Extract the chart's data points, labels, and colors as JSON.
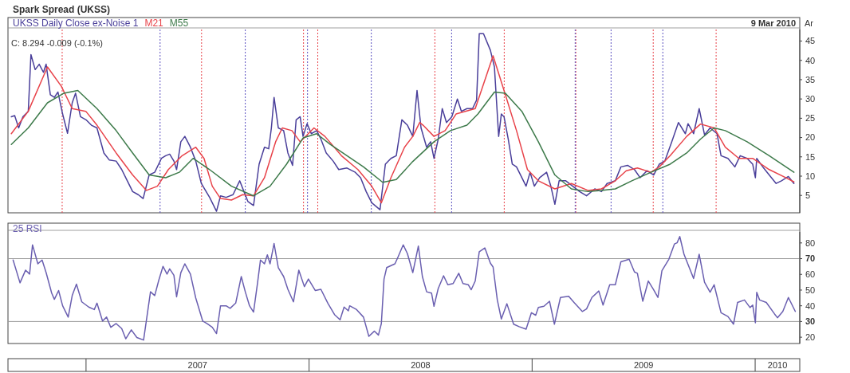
{
  "chart_data": [
    {
      "type": "line",
      "title": "Spark Spread (UKSS)",
      "legend": "top left",
      "tick_labels": "y",
      "grid": false,
      "line_style": "solid",
      "marker": "none",
      "xlim": [
        2006.65,
        2010.2
      ],
      "ylim": [
        0.5,
        48
      ],
      "yticks": [
        5,
        10,
        15,
        20,
        25,
        30,
        35,
        40,
        45
      ],
      "annotations": [
        "9 Mar 2010",
        "Ar",
        "C: 8.294  -0.009 (-0.1%)"
      ],
      "ref_lines": [
        {
          "axis": "x",
          "value": 2006.893,
          "color": "#e8434a",
          "line_style": "dotted"
        },
        {
          "axis": "x",
          "value": 2007.518,
          "color": "#e8434a",
          "line_style": "dotted"
        },
        {
          "axis": "x",
          "value": 2007.975,
          "color": "#e8434a",
          "line_style": "dotted"
        },
        {
          "axis": "x",
          "value": 2008.039,
          "color": "#e8434a",
          "line_style": "dotted"
        },
        {
          "axis": "x",
          "value": 2008.564,
          "color": "#e8434a",
          "line_style": "dotted"
        },
        {
          "axis": "x",
          "value": 2008.875,
          "color": "#e8434a",
          "line_style": "dotted"
        },
        {
          "axis": "x",
          "value": 2009.196,
          "color": "#e8434a",
          "line_style": "dotted"
        },
        {
          "axis": "x",
          "value": 2009.543,
          "color": "#e8434a",
          "line_style": "dotted"
        },
        {
          "axis": "x",
          "value": 2009.825,
          "color": "#e8434a",
          "line_style": "dotted"
        },
        {
          "axis": "x",
          "value": 2007.332,
          "color": "#5a50c0",
          "line_style": "dotted"
        },
        {
          "axis": "x",
          "value": 2007.714,
          "color": "#5a50c0",
          "line_style": "dotted"
        },
        {
          "axis": "x",
          "value": 2007.993,
          "color": "#5a50c0",
          "line_style": "dotted"
        },
        {
          "axis": "x",
          "value": 2008.279,
          "color": "#5a50c0",
          "line_style": "dotted"
        },
        {
          "axis": "x",
          "value": 2008.639,
          "color": "#5a50c0",
          "line_style": "dotted"
        },
        {
          "axis": "x",
          "value": 2009.193,
          "color": "#5a50c0",
          "line_style": "dotted"
        },
        {
          "axis": "x",
          "value": 2009.354,
          "color": "#5a50c0",
          "line_style": "dotted"
        },
        {
          "axis": "x",
          "value": 2009.586,
          "color": "#5a50c0",
          "line_style": "dotted"
        }
      ],
      "series": [
        {
          "name": "UKSS Daily Close ex-Noise 1",
          "color": "#4a3f9a",
          "x": [
            2006.665,
            2006.68,
            2006.698,
            2006.717,
            2006.741,
            2006.753,
            2006.772,
            2006.79,
            2006.809,
            2006.821,
            2006.84,
            2006.858,
            2006.874,
            2006.895,
            2006.917,
            2006.938,
            2006.953,
            2006.975,
            2007.0,
            2007.024,
            2007.049,
            2007.08,
            2007.104,
            2007.135,
            2007.16,
            2007.185,
            2007.209,
            2007.234,
            2007.256,
            2007.283,
            2007.308,
            2007.338,
            2007.357,
            2007.375,
            2007.394,
            2007.406,
            2007.425,
            2007.443,
            2007.468,
            2007.492,
            2007.517,
            2007.554,
            2007.585,
            2007.603,
            2007.628,
            2007.659,
            2007.689,
            2007.708,
            2007.726,
            2007.751,
            2007.776,
            2007.8,
            2007.819,
            2007.831,
            2007.843,
            2007.862,
            2007.886,
            2007.905,
            2007.926,
            2007.942,
            2007.96,
            2007.973,
            2007.991,
            2008.01,
            2008.034,
            2008.053,
            2008.077,
            2008.108,
            2008.133,
            2008.17,
            2008.207,
            2008.231,
            2008.256,
            2008.281,
            2008.318,
            2008.342,
            2008.367,
            2008.391,
            2008.416,
            2008.441,
            2008.465,
            2008.484,
            2008.502,
            2008.527,
            2008.545,
            2008.56,
            2008.579,
            2008.597,
            2008.616,
            2008.64,
            2008.665,
            2008.683,
            2008.708,
            2008.733,
            2008.751,
            2008.763,
            2008.782,
            2008.813,
            2008.831,
            2008.85,
            2008.862,
            2008.874,
            2008.893,
            2008.911,
            2008.93,
            2008.954,
            2008.973,
            2008.991,
            2009.01,
            2009.034,
            2009.065,
            2009.084,
            2009.102,
            2009.121,
            2009.151,
            2009.182,
            2009.213,
            2009.244,
            2009.281,
            2009.311,
            2009.336,
            2009.373,
            2009.398,
            2009.428,
            2009.459,
            2009.484,
            2009.515,
            2009.545,
            2009.57,
            2009.595,
            2009.626,
            2009.656,
            2009.687,
            2009.699,
            2009.724,
            2009.749,
            2009.773,
            2009.798,
            2009.829,
            2009.847,
            2009.878,
            2009.909,
            2009.933,
            2009.964,
            2009.989,
            2010.001,
            2010.007,
            2010.038,
            2010.063,
            2010.094,
            2010.118,
            2010.149,
            2010.174
          ],
          "values": [
            25.4,
            25.7,
            22.5,
            25.4,
            26.8,
            41.5,
            37.6,
            39.0,
            36.9,
            39.0,
            31.1,
            30.4,
            31.8,
            26.1,
            21.1,
            29.0,
            31.5,
            25.4,
            24.6,
            23.2,
            22.5,
            16.0,
            14.2,
            13.9,
            11.7,
            8.8,
            6.0,
            5.2,
            4.2,
            10.3,
            11.0,
            14.6,
            15.3,
            15.7,
            13.9,
            11.7,
            18.9,
            20.3,
            17.5,
            13.9,
            8.1,
            4.5,
            0.9,
            4.9,
            4.5,
            5.2,
            8.8,
            6.0,
            3.4,
            2.4,
            13.1,
            17.5,
            17.1,
            22.5,
            30.4,
            22.5,
            21.8,
            16.0,
            12.8,
            24.6,
            25.4,
            20.3,
            23.6,
            21.0,
            21.8,
            19.6,
            16.0,
            13.9,
            11.7,
            12.1,
            11.0,
            9.6,
            6.0,
            3.1,
            1.3,
            13.1,
            14.6,
            15.3,
            24.6,
            23.2,
            20.3,
            32.2,
            22.5,
            17.5,
            18.9,
            14.6,
            19.6,
            27.5,
            23.9,
            25.4,
            30.0,
            26.8,
            27.5,
            27.5,
            29.7,
            46.9,
            46.9,
            42.6,
            38.3,
            20.3,
            26.1,
            25.4,
            19.6,
            13.1,
            12.4,
            9.6,
            7.4,
            11.0,
            7.4,
            9.6,
            11.0,
            7.4,
            2.7,
            8.8,
            8.8,
            7.4,
            6.0,
            4.9,
            6.7,
            6.0,
            8.1,
            8.8,
            12.4,
            12.8,
            11.7,
            9.6,
            11.4,
            10.3,
            13.1,
            13.9,
            18.9,
            23.9,
            21.0,
            23.6,
            21.0,
            27.5,
            20.7,
            22.5,
            21.0,
            15.3,
            14.6,
            12.4,
            15.3,
            14.6,
            13.1,
            9.6,
            14.6,
            12.1,
            10.3,
            8.1,
            8.8,
            9.9,
            8.1
          ]
        },
        {
          "name": "M21",
          "color": "#e8434a",
          "x": [
            2006.665,
            2006.741,
            2006.827,
            2006.889,
            2006.938,
            2006.999,
            2007.049,
            2007.135,
            2007.209,
            2007.271,
            2007.32,
            2007.369,
            2007.431,
            2007.492,
            2007.529,
            2007.566,
            2007.603,
            2007.652,
            2007.702,
            2007.751,
            2007.8,
            2007.85,
            2007.88,
            2007.923,
            2007.96,
            2008.022,
            2008.071,
            2008.145,
            2008.219,
            2008.281,
            2008.324,
            2008.367,
            2008.428,
            2008.465,
            2008.496,
            2008.511,
            2008.56,
            2008.61,
            2008.659,
            2008.745,
            2008.825,
            2008.88,
            2008.93,
            2008.979,
            2009.028,
            2009.102,
            2009.176,
            2009.25,
            2009.311,
            2009.373,
            2009.422,
            2009.472,
            2009.533,
            2009.57,
            2009.619,
            2009.693,
            2009.755,
            2009.816,
            2009.866,
            2009.927,
            2009.989,
            2010.063,
            2010.137,
            2010.174
          ],
          "values": [
            21.0,
            26.8,
            38.3,
            33.3,
            27.5,
            26.8,
            23.2,
            16.0,
            10.3,
            6.3,
            7.4,
            11.7,
            15.3,
            17.5,
            14.6,
            7.4,
            4.2,
            3.8,
            5.2,
            4.9,
            9.6,
            18.9,
            22.5,
            21.8,
            18.9,
            22.5,
            20.3,
            15.3,
            11.7,
            7.4,
            3.1,
            9.6,
            17.5,
            20.3,
            23.9,
            23.2,
            20.3,
            21.8,
            26.1,
            27.5,
            41.2,
            31.1,
            21.8,
            11.7,
            8.8,
            6.7,
            8.1,
            6.3,
            6.7,
            8.8,
            11.4,
            12.1,
            11.0,
            12.4,
            15.3,
            20.3,
            23.5,
            22.5,
            17.5,
            14.6,
            14.6,
            11.7,
            9.6,
            8.5
          ]
        },
        {
          "name": "M55",
          "color": "#3d7a4a",
          "x": [
            2006.665,
            2006.741,
            2006.827,
            2006.901,
            2006.963,
            2007.049,
            2007.135,
            2007.209,
            2007.283,
            2007.357,
            2007.418,
            2007.48,
            2007.554,
            2007.652,
            2007.751,
            2007.825,
            2007.899,
            2007.973,
            2008.034,
            2008.096,
            2008.17,
            2008.244,
            2008.33,
            2008.391,
            2008.465,
            2008.56,
            2008.634,
            2008.708,
            2008.757,
            2008.831,
            2008.88,
            2008.954,
            2009.028,
            2009.102,
            2009.176,
            2009.25,
            2009.311,
            2009.373,
            2009.447,
            2009.533,
            2009.619,
            2009.693,
            2009.755,
            2009.816,
            2009.866,
            2009.964,
            2010.063,
            2010.174
          ],
          "values": [
            18.2,
            22.5,
            29.0,
            31.5,
            32.2,
            27.5,
            21.8,
            16.0,
            10.3,
            9.6,
            11.0,
            14.6,
            11.7,
            7.4,
            4.9,
            7.4,
            13.1,
            19.9,
            21.0,
            18.2,
            15.3,
            12.4,
            8.4,
            9.1,
            13.8,
            18.9,
            21.8,
            23.2,
            26.1,
            31.8,
            31.5,
            26.8,
            18.9,
            10.3,
            6.7,
            6.0,
            6.3,
            6.7,
            8.8,
            11.0,
            13.1,
            16.0,
            19.6,
            22.5,
            21.8,
            18.9,
            15.3,
            11.0
          ]
        }
      ]
    },
    {
      "type": "line",
      "legend": "top left",
      "grid": false,
      "line_style": "solid",
      "marker": "none",
      "xlim": [
        2006.65,
        2010.2
      ],
      "xticks": [
        {
          "value": 2007,
          "label": null
        },
        {
          "value": 2007.5,
          "label": "2007"
        },
        {
          "value": 2008,
          "label": null
        },
        {
          "value": 2008.5,
          "label": "2008"
        },
        {
          "value": 2009,
          "label": null
        },
        {
          "value": 2009.5,
          "label": "2009"
        },
        {
          "value": 2010,
          "label": null
        },
        {
          "value": 2010.1,
          "label": "2010"
        }
      ],
      "ylim": [
        16,
        87
      ],
      "yticks": [
        20,
        30,
        40,
        50,
        60,
        70,
        80
      ],
      "ref_lines": [
        {
          "axis": "y",
          "value": 70,
          "color": "#9a9a9a"
        },
        {
          "axis": "y",
          "value": 30,
          "color": "#9a9a9a"
        }
      ],
      "series": [
        {
          "name": "25 RSI",
          "color": "#6a5fb0",
          "x": [
            2006.673,
            2006.704,
            2006.729,
            2006.747,
            2006.76,
            2006.784,
            2006.803,
            2006.821,
            2006.846,
            2006.858,
            2006.877,
            2006.895,
            2006.92,
            2006.938,
            2006.957,
            2006.981,
            2007.012,
            2007.037,
            2007.049,
            2007.074,
            2007.092,
            2007.111,
            2007.135,
            2007.16,
            2007.178,
            2007.203,
            2007.228,
            2007.258,
            2007.289,
            2007.308,
            2007.326,
            2007.345,
            2007.363,
            2007.375,
            2007.394,
            2007.406,
            2007.425,
            2007.443,
            2007.468,
            2007.492,
            2007.523,
            2007.542,
            2007.566,
            2007.585,
            2007.603,
            2007.628,
            2007.646,
            2007.671,
            2007.696,
            2007.714,
            2007.733,
            2007.751,
            2007.769,
            2007.782,
            2007.8,
            2007.813,
            2007.825,
            2007.843,
            2007.862,
            2007.886,
            2007.905,
            2007.93,
            2007.954,
            2007.979,
            2007.997,
            2008.028,
            2008.053,
            2008.084,
            2008.114,
            2008.139,
            2008.157,
            2008.176,
            2008.182,
            2008.213,
            2008.244,
            2008.268,
            2008.293,
            2008.311,
            2008.324,
            2008.336,
            2008.348,
            2008.385,
            2008.398,
            2008.422,
            2008.441,
            2008.465,
            2008.49,
            2008.508,
            2008.527,
            2008.549,
            2008.56,
            2008.579,
            2008.603,
            2008.622,
            2008.646,
            2008.671,
            2008.69,
            2008.714,
            2008.727,
            2008.745,
            2008.763,
            2008.788,
            2008.813,
            2008.825,
            2008.844,
            2008.862,
            2008.887,
            2008.917,
            2008.942,
            2008.973,
            2008.997,
            2009.016,
            2009.028,
            2009.053,
            2009.078,
            2009.1,
            2009.127,
            2009.164,
            2009.188,
            2009.225,
            2009.244,
            2009.268,
            2009.299,
            2009.318,
            2009.348,
            2009.373,
            2009.398,
            2009.435,
            2009.459,
            2009.472,
            2009.496,
            2009.521,
            2009.545,
            2009.564,
            2009.582,
            2009.613,
            2009.638,
            2009.65,
            2009.662,
            2009.681,
            2009.699,
            2009.724,
            2009.749,
            2009.773,
            2009.798,
            2009.816,
            2009.847,
            2009.878,
            2009.903,
            2009.921,
            2009.952,
            2009.977,
            2009.989,
            2010.001,
            2010.007,
            2010.02,
            2010.05,
            2010.087,
            2010.1,
            2010.124,
            2010.149,
            2010.18
          ],
          "values": [
            69.1,
            54.6,
            62.7,
            60.2,
            78.8,
            66.7,
            69.1,
            61.1,
            48.1,
            44.1,
            49.7,
            40.0,
            32.8,
            46.5,
            53.8,
            42.5,
            39.2,
            37.6,
            41.7,
            30.3,
            32.8,
            26.3,
            28.7,
            25.5,
            19.0,
            24.7,
            19.8,
            18.2,
            48.9,
            46.5,
            56.2,
            65.1,
            60.2,
            63.5,
            59.4,
            45.7,
            61.1,
            66.7,
            60.2,
            44.9,
            30.3,
            28.7,
            26.3,
            22.3,
            40.0,
            40.0,
            38.4,
            41.7,
            58.6,
            48.9,
            40.0,
            36.0,
            54.6,
            69.1,
            66.7,
            72.4,
            66.7,
            79.6,
            64.3,
            58.6,
            50.5,
            42.5,
            62.7,
            52.2,
            57.0,
            49.7,
            50.5,
            41.7,
            34.4,
            31.1,
            39.2,
            36.8,
            40.0,
            37.6,
            32.8,
            20.6,
            23.9,
            21.4,
            28.7,
            57.0,
            64.3,
            66.7,
            70.8,
            78.8,
            73.2,
            61.1,
            78.0,
            58.6,
            48.9,
            48.1,
            39.7,
            51.0,
            59.1,
            53.4,
            54.2,
            60.7,
            54.2,
            53.4,
            50.2,
            55.8,
            74.4,
            76.8,
            67.1,
            64.7,
            43.7,
            31.6,
            41.3,
            28.3,
            26.7,
            25.1,
            35.6,
            34.0,
            38.9,
            39.7,
            42.9,
            28.3,
            45.3,
            46.1,
            42.1,
            36.4,
            38.0,
            45.3,
            49.4,
            40.5,
            53.4,
            53.4,
            68.0,
            69.6,
            61.5,
            60.7,
            42.9,
            55.8,
            50.2,
            45.3,
            62.3,
            69.6,
            79.3,
            80.1,
            84.1,
            72.8,
            66.3,
            57.4,
            72.8,
            55.0,
            48.6,
            53.4,
            35.6,
            33.2,
            28.3,
            42.1,
            43.7,
            38.9,
            40.5,
            29.2,
            48.6,
            43.7,
            42.1,
            34.8,
            32.4,
            36.4,
            45.3,
            36.4
          ]
        }
      ]
    }
  ]
}
